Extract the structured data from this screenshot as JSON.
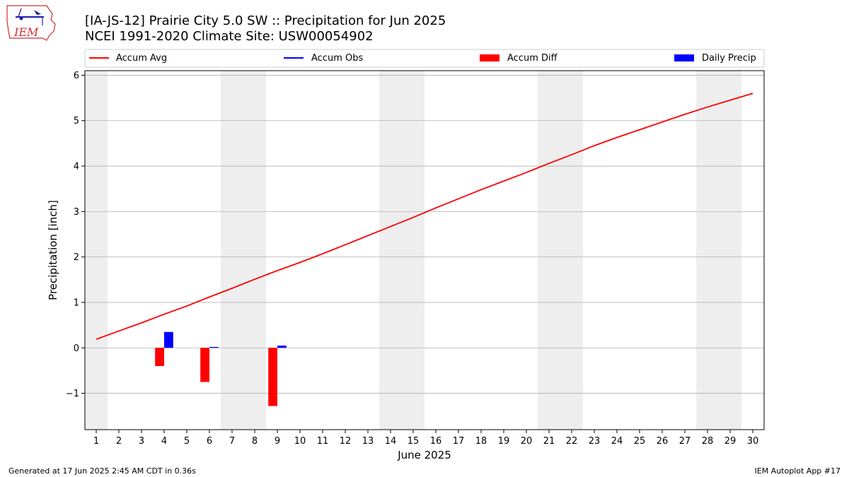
{
  "header": {
    "title_line1": "[IA-JS-12] Prairie City 5.0 SW :: Precipitation for Jun 2025",
    "title_line2": "NCEI 1991-2020 Climate Site: USW00054902",
    "logo_text": "IEM"
  },
  "footer": {
    "generated": "Generated at 17 Jun 2025 2:45 AM CDT in 0.36s",
    "app": "IEM Autoplot App #17"
  },
  "colors": {
    "accum_avg": "#ff0000",
    "accum_obs": "#0000ff",
    "accum_diff": "#ff0000",
    "daily_precip": "#0000ff",
    "weekend_band": "#eeeeee",
    "grid": "#b0b0b0"
  },
  "chart_data": {
    "type": "bar",
    "xlabel": "June 2025",
    "ylabel": "Precipitation [inch]",
    "xlim": [
      0.5,
      30.5
    ],
    "ylim": [
      -1.8,
      6.1
    ],
    "yticks": [
      -1,
      0,
      1,
      2,
      3,
      4,
      5,
      6
    ],
    "ytick_labels": [
      "−1",
      "0",
      "1",
      "2",
      "3",
      "4",
      "5",
      "6"
    ],
    "days": [
      1,
      2,
      3,
      4,
      5,
      6,
      7,
      8,
      9,
      10,
      11,
      12,
      13,
      14,
      15,
      16,
      17,
      18,
      19,
      20,
      21,
      22,
      23,
      24,
      25,
      26,
      27,
      28,
      29,
      30
    ],
    "weekend_ranges": [
      [
        0.5,
        1.5
      ],
      [
        6.5,
        8.5
      ],
      [
        13.5,
        15.5
      ],
      [
        20.5,
        22.5
      ],
      [
        27.5,
        29.5
      ]
    ],
    "grid": "horizontal",
    "legend": {
      "placement": "top",
      "entries": [
        {
          "label": "Accum Avg",
          "kind": "line",
          "color": "#ff0000"
        },
        {
          "label": "Accum Obs",
          "kind": "line",
          "color": "#0000ff"
        },
        {
          "label": "Accum Diff",
          "kind": "bar",
          "color": "#ff0000"
        },
        {
          "label": "Daily Precip",
          "kind": "bar",
          "color": "#0000ff"
        }
      ]
    },
    "series": [
      {
        "name": "Accum Avg",
        "kind": "line",
        "x": [
          1,
          2,
          3,
          4,
          5,
          6,
          7,
          8,
          9,
          10,
          11,
          12,
          13,
          14,
          15,
          16,
          17,
          18,
          19,
          20,
          21,
          22,
          23,
          24,
          25,
          26,
          27,
          28,
          29,
          30
        ],
        "values": [
          0.19,
          0.37,
          0.55,
          0.74,
          0.92,
          1.12,
          1.31,
          1.51,
          1.7,
          1.88,
          2.07,
          2.27,
          2.47,
          2.67,
          2.87,
          3.08,
          3.28,
          3.48,
          3.67,
          3.86,
          4.06,
          4.25,
          4.45,
          4.63,
          4.8,
          4.97,
          5.14,
          5.3,
          5.45,
          5.6
        ]
      },
      {
        "name": "Accum Diff",
        "kind": "bar",
        "x": [
          4,
          6,
          9
        ],
        "values": [
          -0.4,
          -0.75,
          -1.28
        ]
      },
      {
        "name": "Daily Precip",
        "kind": "bar",
        "x": [
          4,
          6,
          9
        ],
        "values": [
          0.35,
          0.02,
          0.05
        ]
      }
    ]
  }
}
